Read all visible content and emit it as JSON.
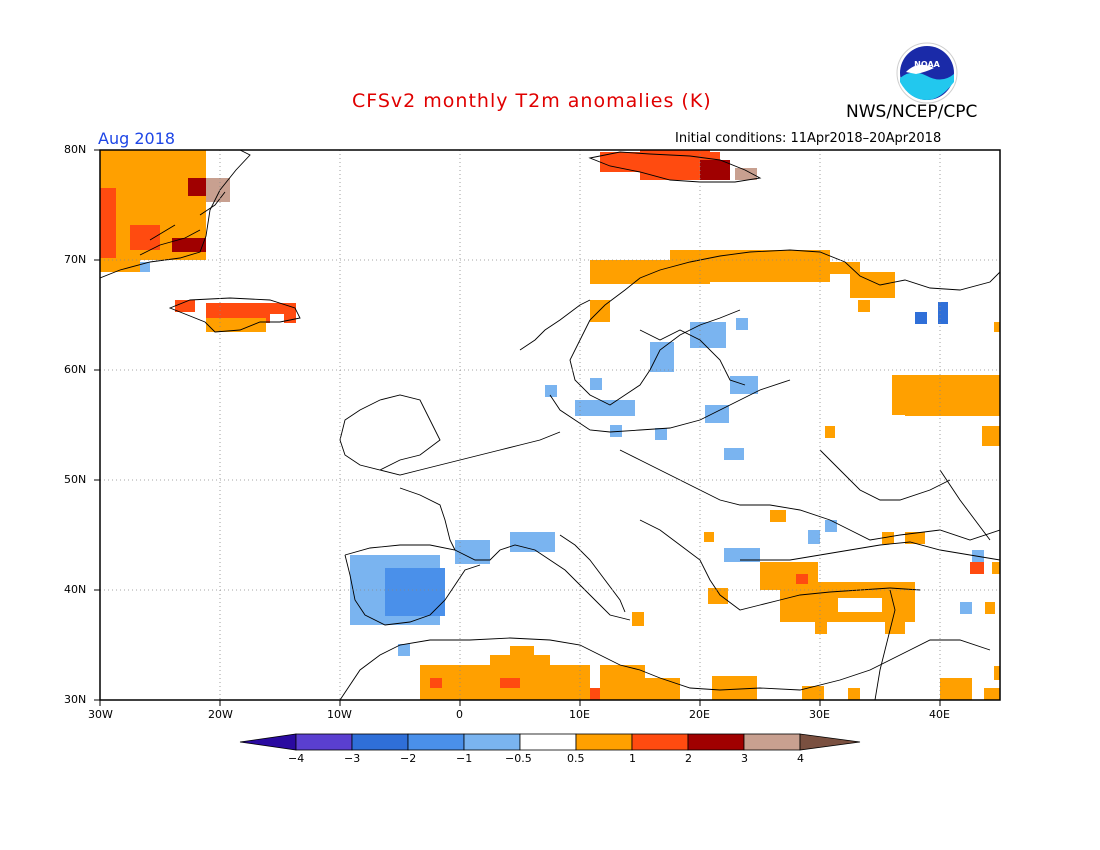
{
  "header": {
    "title": "CFSv2 monthly T2m anomalies (K)",
    "valid_month": "Aug 2018",
    "initial_conditions": "Initial conditions: 11Apr2018–20Apr2018",
    "agency": "NWS/NCEP/CPC",
    "logo_text": "NOAA"
  },
  "map": {
    "lon_range": [
      -30,
      45
    ],
    "lat_range": [
      30,
      80
    ],
    "lat_labels": [
      "80N",
      "70N",
      "60N",
      "50N",
      "40N",
      "30N"
    ],
    "lon_labels": [
      "30W",
      "20W",
      "10W",
      "0",
      "10E",
      "20E",
      "30E",
      "40E"
    ],
    "gridlines": "dotted"
  },
  "colorbar": {
    "tick_labels": [
      "−4",
      "−3",
      "−2",
      "−1",
      "−0.5",
      "0.5",
      "1",
      "2",
      "3",
      "4"
    ],
    "colors": [
      "#2a0aa0",
      "#5a3fd0",
      "#2f6fd8",
      "#4a90ea",
      "#7ab4f0",
      "#ffffff",
      "#ffa000",
      "#ff4b10",
      "#a00000",
      "#c8a090",
      "#7a5040"
    ]
  },
  "anomaly_regions": [
    {
      "name": "greenland",
      "level": 1,
      "color": "#ffa000"
    },
    {
      "name": "svalbard",
      "level": 2,
      "color": "#ff4b10"
    },
    {
      "name": "iceland",
      "level": 2,
      "color": "#ff4b10"
    },
    {
      "name": "northern-scandinavia",
      "level": 1,
      "color": "#ffa000"
    },
    {
      "name": "western-russia",
      "level": 1,
      "color": "#ffa000"
    },
    {
      "name": "iberia",
      "level": -2,
      "color": "#2f6fd8"
    },
    {
      "name": "north-africa",
      "level": 1,
      "color": "#ffa000"
    },
    {
      "name": "turkey",
      "level": 1,
      "color": "#ffa000"
    },
    {
      "name": "baltic",
      "level": -0.5,
      "color": "#7ab4f0"
    }
  ]
}
